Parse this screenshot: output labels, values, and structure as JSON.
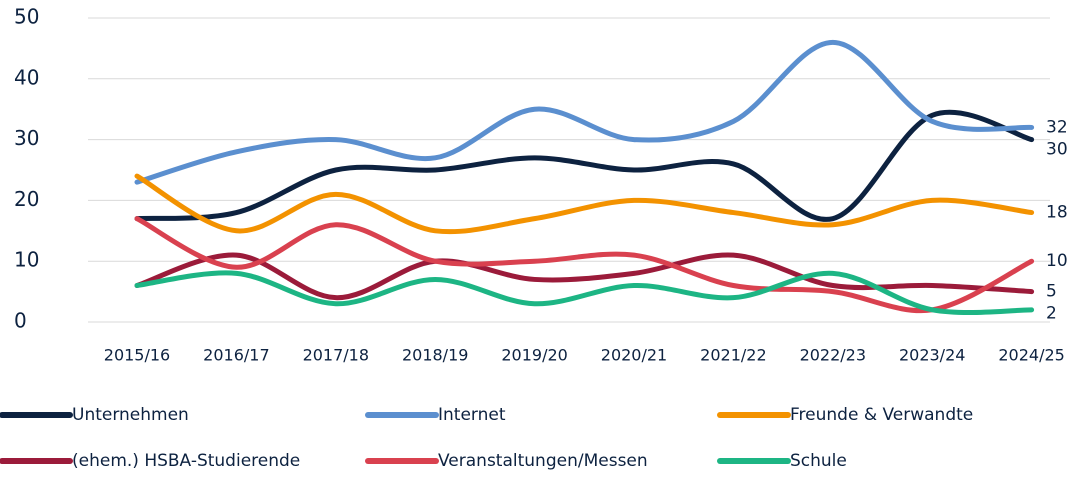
{
  "chart_data": {
    "type": "line",
    "categories": [
      "2015/16",
      "2016/17",
      "2017/18",
      "2018/19",
      "2019/20",
      "2020/21",
      "2021/22",
      "2022/23",
      "2023/24",
      "2024/25"
    ],
    "ylim": [
      0,
      50
    ],
    "yticks": [
      0,
      10,
      20,
      30,
      40,
      50
    ],
    "grid": true,
    "smooth": true,
    "legend": "bottom",
    "series": [
      {
        "name": "Unternehmen",
        "color": "#0d2240",
        "values": [
          17,
          18,
          25,
          25,
          27,
          25,
          26,
          17,
          34,
          30
        ]
      },
      {
        "name": "Internet",
        "color": "#5b8fcf",
        "values": [
          23,
          28,
          30,
          27,
          35,
          30,
          33,
          46,
          33,
          32
        ]
      },
      {
        "name": "Freunde & Verwandte",
        "color": "#f39200",
        "values": [
          24,
          15,
          21,
          15,
          17,
          20,
          18,
          16,
          20,
          18
        ]
      },
      {
        "name": "(ehem.) HSBA-Studierende",
        "color": "#9b1b3a",
        "values": [
          6,
          11,
          4,
          10,
          7,
          8,
          11,
          6,
          6,
          5
        ]
      },
      {
        "name": "Veranstaltungen/Messen",
        "color": "#d9414f",
        "values": [
          17,
          9,
          16,
          10,
          10,
          11,
          6,
          5,
          2,
          10
        ]
      },
      {
        "name": "Schule",
        "color": "#1db584",
        "values": [
          6,
          8,
          3,
          7,
          3,
          6,
          4,
          8,
          2,
          2
        ]
      }
    ]
  }
}
